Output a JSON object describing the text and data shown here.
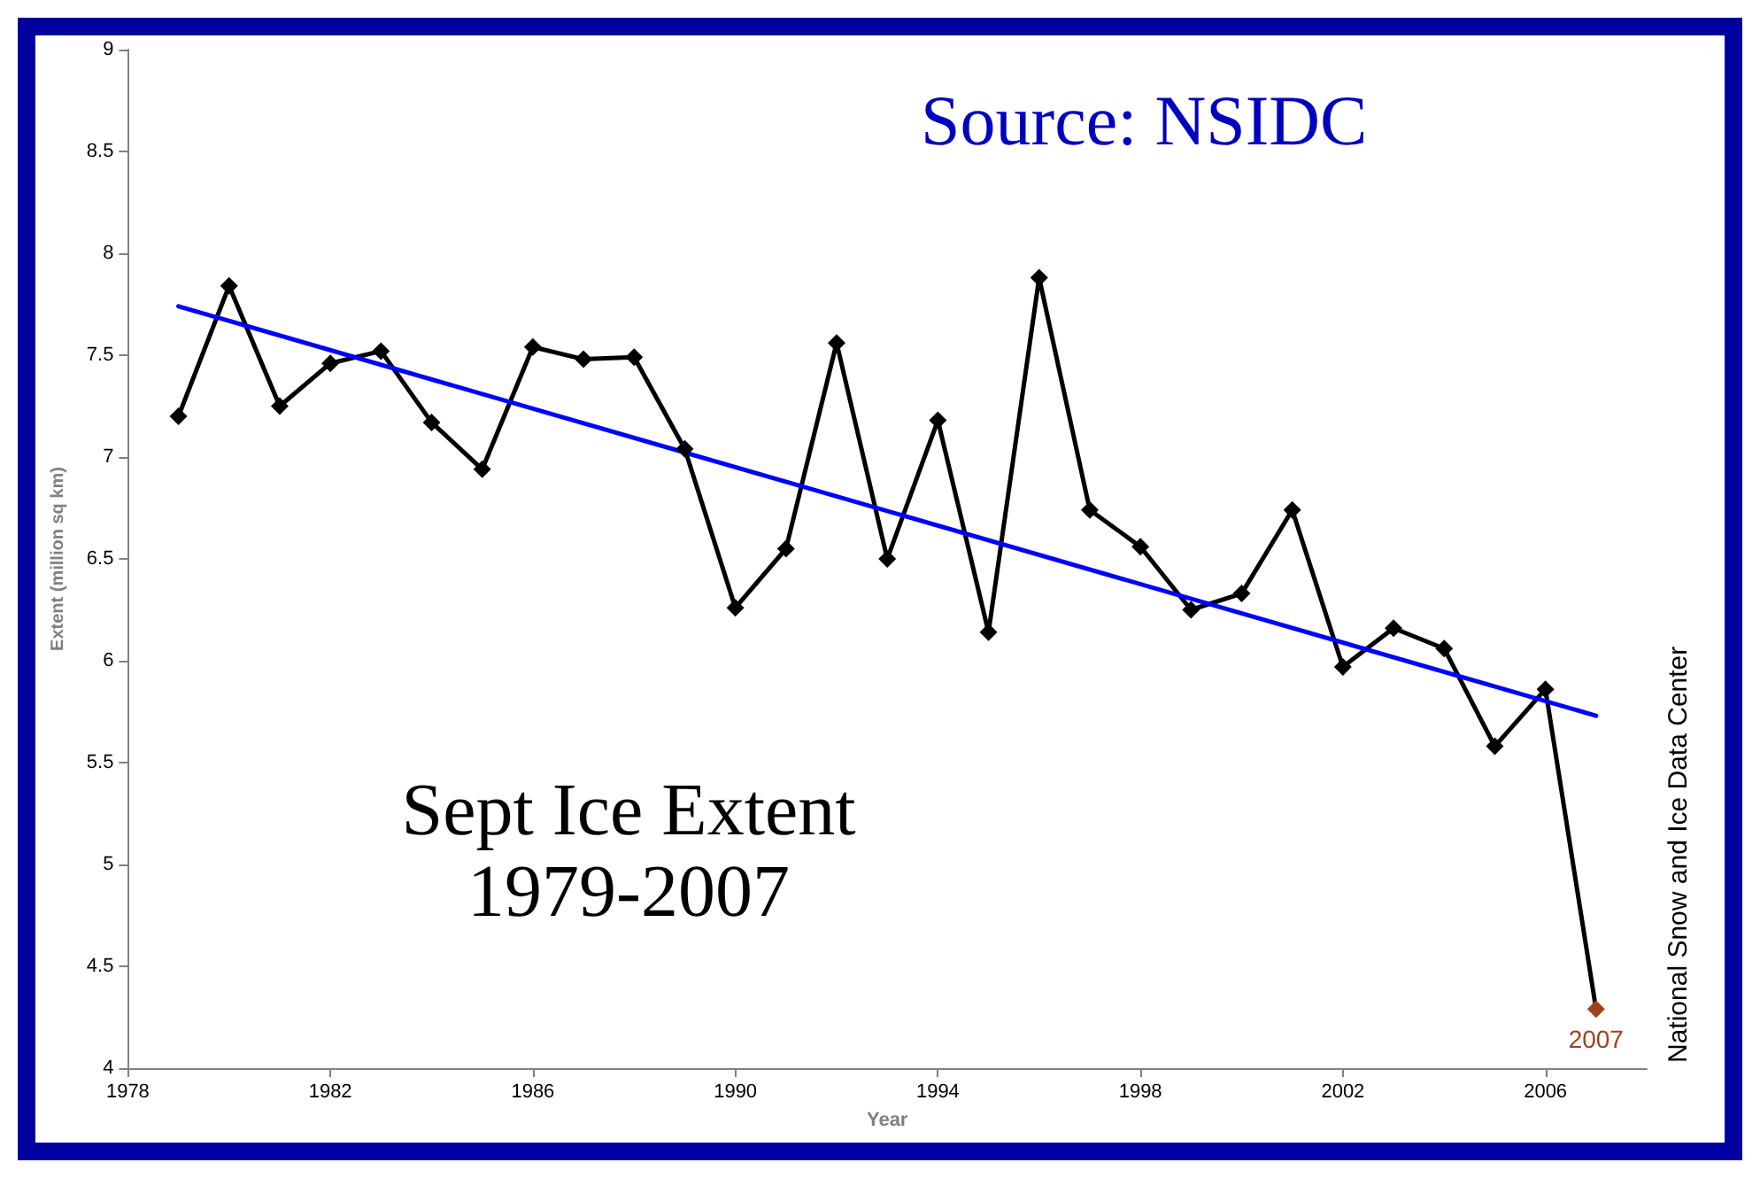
{
  "chart_data": {
    "type": "line",
    "title": "Sept Ice Extent\n1979-2007",
    "xlabel": "Year",
    "ylabel": "Extent (million sq km)",
    "xlim": [
      1978,
      2008
    ],
    "xticks": [
      1978,
      1982,
      1986,
      1990,
      1994,
      1998,
      2002,
      2006
    ],
    "ylim": [
      4,
      9
    ],
    "yticks": [
      4,
      4.5,
      5,
      5.5,
      6,
      6.5,
      7,
      7.5,
      8,
      8.5,
      9
    ],
    "grid": false,
    "marker": "diamond",
    "line_style": "solid",
    "series": [
      {
        "color": "#000000",
        "x": [
          1979,
          1980,
          1981,
          1982,
          1983,
          1984,
          1985,
          1986,
          1987,
          1988,
          1989,
          1990,
          1991,
          1992,
          1993,
          1994,
          1995,
          1996,
          1997,
          1998,
          1999,
          2000,
          2001,
          2002,
          2003,
          2004,
          2005,
          2006,
          2007
        ],
        "values": [
          7.2,
          7.84,
          7.25,
          7.46,
          7.52,
          7.17,
          6.94,
          7.54,
          7.48,
          7.49,
          7.04,
          6.26,
          6.55,
          7.56,
          6.5,
          7.18,
          6.14,
          7.88,
          6.74,
          6.56,
          6.25,
          6.33,
          6.74,
          5.97,
          6.16,
          6.06,
          5.58,
          5.86,
          4.29
        ],
        "colors": [
          "#000000",
          "#000000",
          "#000000",
          "#000000",
          "#000000",
          "#000000",
          "#000000",
          "#000000",
          "#000000",
          "#000000",
          "#000000",
          "#000000",
          "#000000",
          "#000000",
          "#000000",
          "#000000",
          "#000000",
          "#000000",
          "#000000",
          "#000000",
          "#000000",
          "#000000",
          "#000000",
          "#000000",
          "#000000",
          "#000000",
          "#000000",
          "#000000",
          "#a0421c"
        ]
      },
      {
        "type": "line",
        "color": "#0000ff",
        "marker": "none",
        "x": [
          1979,
          2007
        ],
        "values": [
          7.74,
          5.73
        ]
      }
    ],
    "annotations": [
      {
        "text": "2007",
        "x": 2007,
        "y": 4.29
      },
      "Source: NSIDC",
      "National Snow and Ice Data Center"
    ]
  }
}
